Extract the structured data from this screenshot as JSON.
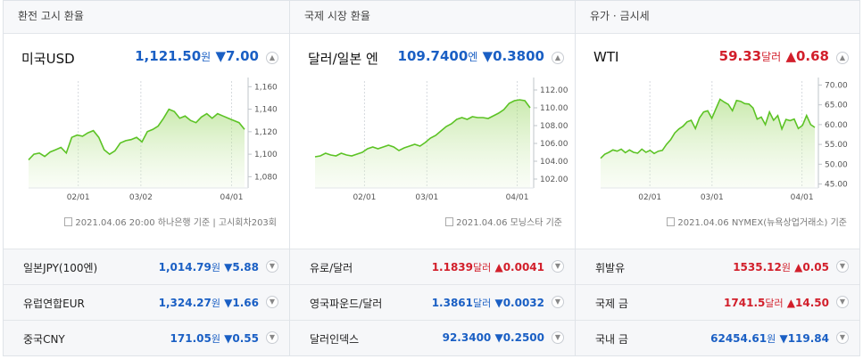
{
  "panels": [
    {
      "title": "환전 고시 환율",
      "main": {
        "name": "미국USD",
        "value": "1,121.50",
        "unit": "원",
        "arrow": "▼",
        "change": "7.00",
        "dir": "down"
      },
      "chart": {
        "x_ticks": [
          "02/01",
          "03/02",
          "04/01"
        ],
        "y_ticks": [
          "1,160",
          "1,140",
          "1,120",
          "1,100",
          "1,080"
        ]
      },
      "source": "2021.04.06 20:00 하나은행 기준 | 고시회차203회",
      "rows": [
        {
          "name": "일본JPY(100엔)",
          "value": "1,014.79",
          "unit": "원",
          "arrow": "▼",
          "change": "5.88",
          "dir": "down"
        },
        {
          "name": "유럽연합EUR",
          "value": "1,324.27",
          "unit": "원",
          "arrow": "▼",
          "change": "1.66",
          "dir": "down"
        },
        {
          "name": "중국CNY",
          "value": "171.05",
          "unit": "원",
          "arrow": "▼",
          "change": "0.55",
          "dir": "down"
        }
      ]
    },
    {
      "title": "국제 시장 환율",
      "main": {
        "name": "달러/일본 엔",
        "value": "109.7400",
        "unit": "엔",
        "arrow": "▼",
        "change": "0.3800",
        "dir": "down"
      },
      "chart": {
        "x_ticks": [
          "02/01",
          "03/01",
          "04/01"
        ],
        "y_ticks": [
          "112.00",
          "110.00",
          "108.00",
          "106.00",
          "104.00",
          "102.00"
        ]
      },
      "source": "2021.04.06 모닝스타 기준",
      "rows": [
        {
          "name": "유로/달러",
          "value": "1.1839",
          "unit": "달러",
          "arrow": "▲",
          "change": "0.0041",
          "dir": "up"
        },
        {
          "name": "영국파운드/달러",
          "value": "1.3861",
          "unit": "달러",
          "arrow": "▼",
          "change": "0.0032",
          "dir": "down"
        },
        {
          "name": "달러인덱스",
          "value": "92.3400",
          "unit": "",
          "arrow": "▼",
          "change": "0.2500",
          "dir": "down"
        }
      ]
    },
    {
      "title": "유가 · 금시세",
      "main": {
        "name": "WTI",
        "value": "59.33",
        "unit": "달러",
        "arrow": "▲",
        "change": "0.68",
        "dir": "up"
      },
      "chart": {
        "x_ticks": [
          "02/01",
          "03/01",
          "04/01"
        ],
        "y_ticks": [
          "70.00",
          "65.00",
          "60.00",
          "55.00",
          "50.00",
          "45.00"
        ]
      },
      "source": "2021.04.06 NYMEX(뉴욕상업거래소) 기준",
      "rows": [
        {
          "name": "휘발유",
          "value": "1535.12",
          "unit": "원",
          "arrow": "▲",
          "change": "0.05",
          "dir": "up"
        },
        {
          "name": "국제 금",
          "value": "1741.5",
          "unit": "달러",
          "arrow": "▲",
          "change": "14.50",
          "dir": "up"
        },
        {
          "name": "국내 금",
          "value": "62454.61",
          "unit": "원",
          "arrow": "▼",
          "change": "119.84",
          "dir": "down"
        }
      ]
    }
  ],
  "chart_data": [
    {
      "type": "area",
      "title": "미국USD",
      "x_ticks": [
        "02/01",
        "03/02",
        "04/01"
      ],
      "ylim": [
        1070,
        1165
      ],
      "values": [
        1095,
        1100,
        1101,
        1098,
        1102,
        1104,
        1106,
        1101,
        1115,
        1117,
        1116,
        1119,
        1121,
        1115,
        1104,
        1100,
        1103,
        1110,
        1112,
        1113,
        1115,
        1111,
        1120,
        1122,
        1125,
        1132,
        1140,
        1138,
        1132,
        1134,
        1130,
        1128,
        1133,
        1136,
        1132,
        1136,
        1134,
        1132,
        1130,
        1128,
        1122
      ]
    },
    {
      "type": "area",
      "title": "달러/일본 엔",
      "x_ticks": [
        "02/01",
        "03/01",
        "04/01"
      ],
      "ylim": [
        101,
        113
      ],
      "values": [
        104.5,
        104.6,
        104.9,
        104.7,
        104.6,
        104.9,
        104.7,
        104.6,
        104.8,
        105.0,
        105.4,
        105.6,
        105.4,
        105.6,
        105.8,
        105.6,
        105.2,
        105.5,
        105.7,
        105.9,
        105.7,
        106.1,
        106.6,
        106.9,
        107.4,
        107.9,
        108.2,
        108.7,
        108.9,
        108.7,
        109.0,
        108.9,
        108.9,
        108.8,
        109.1,
        109.4,
        109.8,
        110.5,
        110.8,
        110.9,
        110.8,
        110.0
      ]
    },
    {
      "type": "area",
      "title": "WTI",
      "x_ticks": [
        "02/01",
        "03/01",
        "04/01"
      ],
      "ylim": [
        44,
        71
      ],
      "values": [
        51.5,
        52.5,
        53.0,
        53.6,
        53.3,
        53.8,
        52.9,
        53.6,
        53.0,
        52.8,
        53.8,
        53.0,
        53.5,
        52.7,
        53.3,
        53.5,
        55.0,
        56.2,
        57.9,
        58.9,
        59.6,
        60.7,
        61.1,
        59.0,
        61.7,
        63.2,
        63.5,
        61.6,
        64.0,
        66.4,
        65.7,
        65.1,
        63.5,
        66.1,
        65.9,
        65.3,
        65.2,
        64.2,
        61.4,
        61.9,
        60.0,
        63.2,
        61.1,
        62.3,
        58.9,
        61.3,
        61.0,
        61.4,
        59.0,
        59.8,
        62.3,
        60.0,
        59.3
      ]
    }
  ]
}
